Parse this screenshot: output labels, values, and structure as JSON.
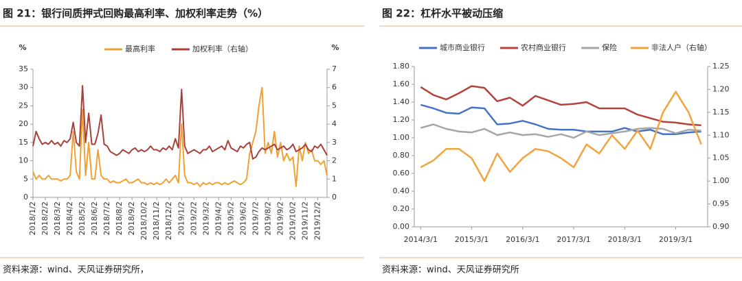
{
  "chart_data": [
    {
      "type": "line",
      "title": "图 21：银行间质押式回购最高利率、加权利率走势（%）",
      "source": "资料来源：wind、天风证券研究所，",
      "ylabel": "%",
      "y2label": "%",
      "categories": [
        "2018/1/2",
        null,
        null,
        null,
        "2018/2/2",
        null,
        null,
        null,
        "2018/3/2",
        null,
        null,
        null,
        "2018/4/2",
        null,
        null,
        null,
        "2018/5/2",
        null,
        null,
        null,
        "2018/6/2",
        null,
        null,
        null,
        "2018/7/2",
        null,
        null,
        null,
        "2018/8/2",
        null,
        null,
        null,
        "2018/9/2",
        null,
        null,
        null,
        "2018/10/2",
        null,
        null,
        null,
        "2018/11/2",
        null,
        null,
        null,
        "2018/12/2",
        null,
        null,
        null,
        "2019/1/2",
        null,
        null,
        null,
        "2019/2/2",
        null,
        null,
        null,
        "2019/3/2",
        null,
        null,
        null,
        "2019/4/2",
        null,
        null,
        null,
        "2019/5/2",
        null,
        null,
        null,
        "2019/6/2",
        null,
        null,
        null,
        "2019/7/2",
        null,
        null,
        null,
        "2019/8/2",
        null,
        null,
        null,
        "2019/9/2",
        null,
        null,
        null,
        "2019/10/2",
        null,
        null,
        null,
        "2019/11/2",
        null,
        null,
        null,
        "2019/12/2",
        null,
        null,
        null
      ],
      "ylim": [
        0,
        35
      ],
      "yticks": [
        0,
        5,
        10,
        15,
        20,
        25,
        30,
        35
      ],
      "y2lim": [
        0,
        7
      ],
      "y2ticks": [
        0,
        1,
        2,
        3,
        4,
        5,
        6,
        7
      ],
      "series": [
        {
          "name": "最高利率",
          "color": "#f0a030",
          "values": [
            7,
            5,
            6,
            5,
            5,
            6,
            5,
            5,
            5,
            4.5,
            5,
            5,
            6,
            18,
            7,
            5,
            24,
            6,
            15,
            5,
            5,
            13,
            6,
            5,
            5,
            4,
            4.5,
            4,
            4,
            4.5,
            5,
            4,
            4,
            4.5,
            5,
            4,
            4,
            3.5,
            4,
            3.5,
            4,
            3.5,
            4,
            5,
            4,
            5,
            6,
            4,
            20,
            6,
            4,
            4,
            3.5,
            4,
            3,
            4,
            3.5,
            4,
            3.5,
            4,
            4,
            3.5,
            4,
            3.5,
            4,
            4.5,
            4,
            3.5,
            4,
            5,
            12,
            15,
            18,
            25,
            30,
            12,
            15,
            12,
            18,
            11,
            15,
            10,
            12,
            10,
            11,
            3,
            14,
            10,
            15,
            12,
            13,
            10,
            10,
            9,
            10,
            6
          ]
        },
        {
          "name": "加权利率（右轴）",
          "color": "#a8403a",
          "axis": "y2",
          "values": [
            2.8,
            3.6,
            3.2,
            2.9,
            3.0,
            2.9,
            3.1,
            2.9,
            3.0,
            2.8,
            3.1,
            3.0,
            3.2,
            4.1,
            3.0,
            2.8,
            6.1,
            3.0,
            4.6,
            2.9,
            2.9,
            3.5,
            4.5,
            2.9,
            2.8,
            2.5,
            2.4,
            2.3,
            2.4,
            2.6,
            2.5,
            2.4,
            2.6,
            2.7,
            2.5,
            2.6,
            2.5,
            2.6,
            2.8,
            2.6,
            2.6,
            2.5,
            2.7,
            2.6,
            2.8,
            2.6,
            3.2,
            2.7,
            5.9,
            2.8,
            2.4,
            2.5,
            2.6,
            2.5,
            2.4,
            2.6,
            2.6,
            2.8,
            2.5,
            2.6,
            2.7,
            2.8,
            2.6,
            3.1,
            2.7,
            2.6,
            2.5,
            2.8,
            2.7,
            2.9,
            3.0,
            2.1,
            2.2,
            2.5,
            2.7,
            2.6,
            2.7,
            2.8,
            2.9,
            2.6,
            2.7,
            2.8,
            2.6,
            2.7,
            2.9,
            2.5,
            2.6,
            2.7,
            2.9,
            2.6,
            2.5,
            2.8,
            2.7,
            2.9,
            2.6,
            2.3
          ]
        }
      ]
    },
    {
      "type": "line",
      "title": "图 22：杠杆水平被动压缩",
      "source": "资料来源：wind、天风证券研究所",
      "categories": [
        "2014/3/1",
        null,
        null,
        null,
        "2015/3/1",
        null,
        null,
        null,
        "2016/3/1",
        null,
        null,
        null,
        "2017/3/1",
        null,
        null,
        null,
        "2018/3/1",
        null,
        null,
        null,
        "2019/3/1",
        null,
        null
      ],
      "ylim": [
        0,
        1.8
      ],
      "yticks": [
        {
          "value": 0,
          "label": "0.00"
        },
        {
          "value": 0.2,
          "label": "0.20"
        },
        {
          "value": 0.4,
          "label": "0.40"
        },
        {
          "value": 0.6,
          "label": "0.60"
        },
        {
          "value": 0.8,
          "label": "0.80"
        },
        {
          "value": 1,
          "label": "1.00"
        },
        {
          "value": 1.2,
          "label": "1.20"
        },
        {
          "value": 1.4,
          "label": "1.40"
        },
        {
          "value": 1.6,
          "label": "1.60"
        },
        {
          "value": 1.8,
          "label": "1.80"
        }
      ],
      "y2lim": [
        0.9,
        1.25
      ],
      "y2ticks": [
        {
          "value": 0.9,
          "label": "0.90"
        },
        {
          "value": 0.95,
          "label": "0.95"
        },
        {
          "value": 1,
          "label": "1.00"
        },
        {
          "value": 1.05,
          "label": "1.05"
        },
        {
          "value": 1.1,
          "label": "1.10"
        },
        {
          "value": 1.15,
          "label": "1.15"
        },
        {
          "value": 1.2,
          "label": "1.20"
        },
        {
          "value": 1.25,
          "label": "1.25"
        }
      ],
      "series": [
        {
          "name": "城市商业银行",
          "color": "#4472c4",
          "values": [
            1.37,
            1.33,
            1.28,
            1.27,
            1.34,
            1.33,
            1.15,
            1.16,
            1.19,
            1.15,
            1.1,
            1.09,
            1.09,
            1.07,
            1.07,
            1.07,
            1.11,
            1.07,
            1.09,
            1.04,
            1.04,
            1.06,
            1.07
          ]
        },
        {
          "name": "农村商业银行",
          "color": "#b5413a",
          "values": [
            1.57,
            1.48,
            1.43,
            1.5,
            1.58,
            1.56,
            1.41,
            1.45,
            1.36,
            1.47,
            1.42,
            1.37,
            1.38,
            1.4,
            1.33,
            1.33,
            1.33,
            1.26,
            1.22,
            1.18,
            1.17,
            1.15,
            1.14
          ]
        },
        {
          "name": "保险",
          "color": "#a5a5a5",
          "values": [
            1.11,
            1.15,
            1.1,
            1.07,
            1.06,
            1.1,
            1.03,
            1.06,
            1.03,
            1.04,
            1.01,
            1.04,
            1.0,
            1.07,
            1.03,
            1.05,
            1.07,
            1.1,
            1.11,
            1.1,
            1.05,
            1.09,
            1.08
          ]
        },
        {
          "name": "非法人户（右轴）",
          "color": "#f4a23c",
          "axis": "y2",
          "values": [
            1.03,
            1.045,
            1.07,
            1.07,
            1.05,
            1.0,
            1.06,
            1.02,
            1.05,
            1.07,
            1.065,
            1.05,
            1.03,
            1.08,
            1.06,
            1.1,
            1.07,
            1.11,
            1.07,
            1.15,
            1.195,
            1.15,
            1.08
          ]
        }
      ]
    }
  ]
}
